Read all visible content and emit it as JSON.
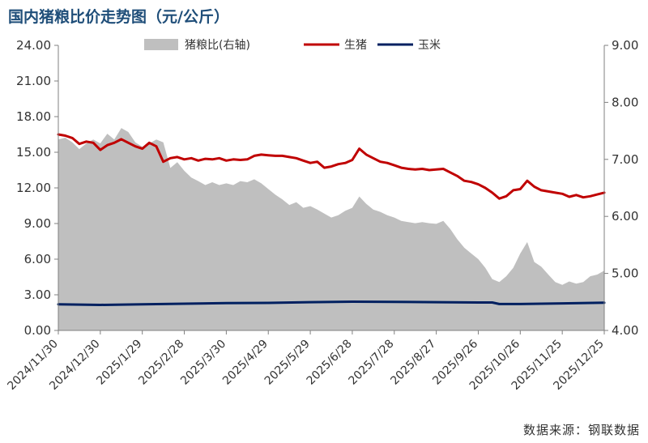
{
  "title": "国内猪粮比价走势图（元/公斤）",
  "source": "数据来源：钢联数据",
  "colors": {
    "ratio_fill": "#bfbfbf",
    "pig": "#c00000",
    "corn": "#002060",
    "axis": "#808080",
    "text": "#333333"
  },
  "chart_data": {
    "type": "line",
    "x_ticks": [
      "2024/11/30",
      "2024/12/30",
      "2025/1/29",
      "2025/2/28",
      "2025/3/30",
      "2025/4/29",
      "2025/5/29",
      "2025/6/28",
      "2025/7/28",
      "2025/8/27",
      "2025/9/26",
      "2025/10/26",
      "2025/11/25",
      "2025/12/25"
    ],
    "y_left": {
      "range": [
        0,
        24
      ],
      "ticks": [
        "0.00",
        "3.00",
        "6.00",
        "9.00",
        "12.00",
        "15.00",
        "18.00",
        "21.00",
        "24.00"
      ]
    },
    "y_right": {
      "range": [
        4,
        9
      ],
      "ticks": [
        "4.00",
        "5.00",
        "6.00",
        "7.00",
        "8.00",
        "9.00"
      ]
    },
    "legend": {
      "placement": "top"
    },
    "series": [
      {
        "name": "猪粮比(右轴)",
        "kind": "area",
        "axis": "right",
        "points": [
          [
            "2024/11/30",
            7.35
          ],
          [
            "2024/12/5",
            7.38
          ],
          [
            "2024/12/10",
            7.3
          ],
          [
            "2024/12/15",
            7.18
          ],
          [
            "2024/12/20",
            7.28
          ],
          [
            "2024/12/25",
            7.35
          ],
          [
            "2024/12/30",
            7.28
          ],
          [
            "2025/1/4",
            7.45
          ],
          [
            "2025/1/9",
            7.35
          ],
          [
            "2025/1/14",
            7.55
          ],
          [
            "2025/1/19",
            7.48
          ],
          [
            "2025/1/24",
            7.3
          ],
          [
            "2025/1/29",
            7.22
          ],
          [
            "2025/2/3",
            7.28
          ],
          [
            "2025/2/8",
            7.35
          ],
          [
            "2025/2/13",
            7.3
          ],
          [
            "2025/2/18",
            6.85
          ],
          [
            "2025/2/23",
            6.95
          ],
          [
            "2025/2/28",
            6.8
          ],
          [
            "2025/3/5",
            6.68
          ],
          [
            "2025/3/10",
            6.62
          ],
          [
            "2025/3/15",
            6.55
          ],
          [
            "2025/3/20",
            6.6
          ],
          [
            "2025/3/25",
            6.55
          ],
          [
            "2025/3/30",
            6.58
          ],
          [
            "2025/4/4",
            6.55
          ],
          [
            "2025/4/9",
            6.62
          ],
          [
            "2025/4/14",
            6.6
          ],
          [
            "2025/4/19",
            6.65
          ],
          [
            "2025/4/24",
            6.58
          ],
          [
            "2025/4/29",
            6.48
          ],
          [
            "2025/5/4",
            6.38
          ],
          [
            "2025/5/9",
            6.3
          ],
          [
            "2025/5/14",
            6.2
          ],
          [
            "2025/5/19",
            6.25
          ],
          [
            "2025/5/24",
            6.15
          ],
          [
            "2025/5/29",
            6.18
          ],
          [
            "2025/6/3",
            6.12
          ],
          [
            "2025/6/8",
            6.05
          ],
          [
            "2025/6/13",
            5.98
          ],
          [
            "2025/6/18",
            6.02
          ],
          [
            "2025/6/23",
            6.1
          ],
          [
            "2025/6/28",
            6.15
          ],
          [
            "2025/7/3",
            6.35
          ],
          [
            "2025/7/8",
            6.22
          ],
          [
            "2025/7/13",
            6.12
          ],
          [
            "2025/7/18",
            6.08
          ],
          [
            "2025/7/23",
            6.02
          ],
          [
            "2025/7/28",
            5.98
          ],
          [
            "2025/8/2",
            5.92
          ],
          [
            "2025/8/7",
            5.9
          ],
          [
            "2025/8/12",
            5.88
          ],
          [
            "2025/8/17",
            5.9
          ],
          [
            "2025/8/22",
            5.88
          ],
          [
            "2025/8/27",
            5.87
          ],
          [
            "2025/9/1",
            5.92
          ],
          [
            "2025/9/6",
            5.78
          ],
          [
            "2025/9/11",
            5.6
          ],
          [
            "2025/9/16",
            5.45
          ],
          [
            "2025/9/21",
            5.35
          ],
          [
            "2025/9/26",
            5.25
          ],
          [
            "2025/10/1",
            5.1
          ],
          [
            "2025/10/6",
            4.9
          ],
          [
            "2025/10/11",
            4.85
          ],
          [
            "2025/10/16",
            4.95
          ],
          [
            "2025/10/21",
            5.1
          ],
          [
            "2025/10/26",
            5.35
          ],
          [
            "2025/10/31",
            5.55
          ],
          [
            "2025/11/5",
            5.2
          ],
          [
            "2025/11/10",
            5.12
          ],
          [
            "2025/11/15",
            4.98
          ],
          [
            "2025/11/20",
            4.85
          ],
          [
            "2025/11/25",
            4.8
          ],
          [
            "2025/11/30",
            4.86
          ],
          [
            "2025/12/5",
            4.82
          ],
          [
            "2025/12/10",
            4.85
          ],
          [
            "2025/12/15",
            4.95
          ],
          [
            "2025/12/20",
            4.98
          ],
          [
            "2025/12/25",
            5.05
          ]
        ]
      },
      {
        "name": "生猪",
        "kind": "line",
        "axis": "left",
        "points": [
          [
            "2024/11/30",
            16.5
          ],
          [
            "2024/12/5",
            16.4
          ],
          [
            "2024/12/10",
            16.2
          ],
          [
            "2024/12/15",
            15.7
          ],
          [
            "2024/12/20",
            15.9
          ],
          [
            "2024/12/25",
            15.8
          ],
          [
            "2024/12/30",
            15.2
          ],
          [
            "2025/1/4",
            15.6
          ],
          [
            "2025/1/9",
            15.8
          ],
          [
            "2025/1/14",
            16.1
          ],
          [
            "2025/1/19",
            15.8
          ],
          [
            "2025/1/24",
            15.5
          ],
          [
            "2025/1/29",
            15.3
          ],
          [
            "2025/2/3",
            15.8
          ],
          [
            "2025/2/8",
            15.5
          ],
          [
            "2025/2/13",
            14.2
          ],
          [
            "2025/2/18",
            14.5
          ],
          [
            "2025/2/23",
            14.6
          ],
          [
            "2025/2/28",
            14.4
          ],
          [
            "2025/3/5",
            14.5
          ],
          [
            "2025/3/10",
            14.3
          ],
          [
            "2025/3/15",
            14.45
          ],
          [
            "2025/3/20",
            14.4
          ],
          [
            "2025/3/25",
            14.5
          ],
          [
            "2025/3/30",
            14.3
          ],
          [
            "2025/4/4",
            14.4
          ],
          [
            "2025/4/9",
            14.35
          ],
          [
            "2025/4/14",
            14.4
          ],
          [
            "2025/4/19",
            14.7
          ],
          [
            "2025/4/24",
            14.8
          ],
          [
            "2025/4/29",
            14.75
          ],
          [
            "2025/5/4",
            14.7
          ],
          [
            "2025/5/9",
            14.7
          ],
          [
            "2025/5/14",
            14.6
          ],
          [
            "2025/5/19",
            14.5
          ],
          [
            "2025/5/24",
            14.3
          ],
          [
            "2025/5/29",
            14.1
          ],
          [
            "2025/6/3",
            14.2
          ],
          [
            "2025/6/8",
            13.7
          ],
          [
            "2025/6/13",
            13.8
          ],
          [
            "2025/6/18",
            14.0
          ],
          [
            "2025/6/23",
            14.1
          ],
          [
            "2025/6/28",
            14.35
          ],
          [
            "2025/7/3",
            15.3
          ],
          [
            "2025/7/8",
            14.8
          ],
          [
            "2025/7/13",
            14.5
          ],
          [
            "2025/7/18",
            14.2
          ],
          [
            "2025/7/23",
            14.1
          ],
          [
            "2025/7/28",
            13.9
          ],
          [
            "2025/8/2",
            13.7
          ],
          [
            "2025/8/7",
            13.6
          ],
          [
            "2025/8/12",
            13.55
          ],
          [
            "2025/8/17",
            13.6
          ],
          [
            "2025/8/22",
            13.5
          ],
          [
            "2025/8/27",
            13.55
          ],
          [
            "2025/9/1",
            13.6
          ],
          [
            "2025/9/6",
            13.3
          ],
          [
            "2025/9/11",
            13.0
          ],
          [
            "2025/9/16",
            12.6
          ],
          [
            "2025/9/21",
            12.5
          ],
          [
            "2025/9/26",
            12.3
          ],
          [
            "2025/10/1",
            12.0
          ],
          [
            "2025/10/6",
            11.6
          ],
          [
            "2025/10/11",
            11.1
          ],
          [
            "2025/10/16",
            11.3
          ],
          [
            "2025/10/21",
            11.8
          ],
          [
            "2025/10/26",
            11.9
          ],
          [
            "2025/10/31",
            12.6
          ],
          [
            "2025/11/5",
            12.1
          ],
          [
            "2025/11/10",
            11.8
          ],
          [
            "2025/11/15",
            11.7
          ],
          [
            "2025/11/20",
            11.6
          ],
          [
            "2025/11/25",
            11.5
          ],
          [
            "2025/11/30",
            11.25
          ],
          [
            "2025/12/5",
            11.4
          ],
          [
            "2025/12/10",
            11.2
          ],
          [
            "2025/12/15",
            11.3
          ],
          [
            "2025/12/20",
            11.45
          ],
          [
            "2025/12/25",
            11.6
          ]
        ]
      },
      {
        "name": "玉米",
        "kind": "line",
        "axis": "left",
        "points": [
          [
            "2024/11/30",
            2.2
          ],
          [
            "2024/12/30",
            2.15
          ],
          [
            "2025/1/29",
            2.2
          ],
          [
            "2025/2/28",
            2.25
          ],
          [
            "2025/3/30",
            2.3
          ],
          [
            "2025/4/29",
            2.32
          ],
          [
            "2025/5/29",
            2.38
          ],
          [
            "2025/6/28",
            2.42
          ],
          [
            "2025/7/28",
            2.4
          ],
          [
            "2025/8/27",
            2.38
          ],
          [
            "2025/9/26",
            2.35
          ],
          [
            "2025/10/6",
            2.35
          ],
          [
            "2025/10/11",
            2.22
          ],
          [
            "2025/10/26",
            2.22
          ],
          [
            "2025/11/25",
            2.28
          ],
          [
            "2025/12/25",
            2.33
          ]
        ]
      }
    ]
  }
}
